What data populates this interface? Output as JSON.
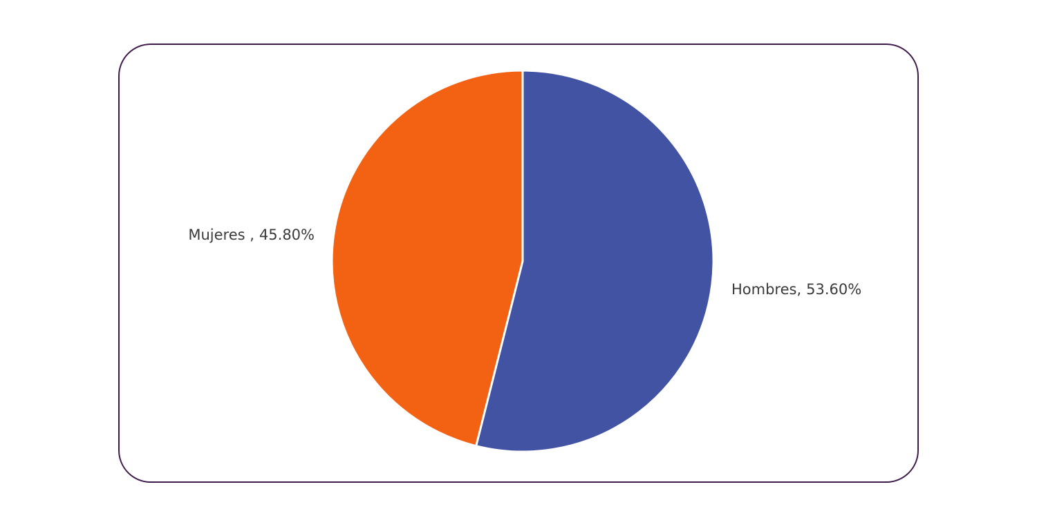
{
  "chart_data": {
    "type": "pie",
    "categories": [
      "Hombres,",
      "Mujeres ,"
    ],
    "values": [
      53.6,
      45.8
    ],
    "value_labels": [
      "53.60%",
      "45.80%"
    ],
    "colors": [
      "#4353a4",
      "#f26212"
    ]
  }
}
